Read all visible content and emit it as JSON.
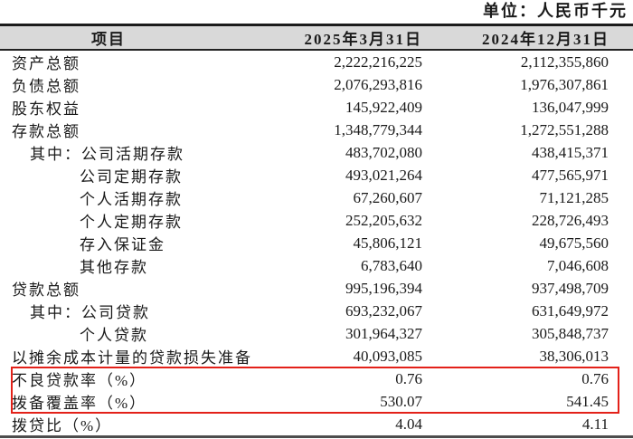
{
  "unit_label": "单位：人民币千元",
  "table": {
    "columns": [
      "项目",
      "2025年3月31日",
      "2024年12月31日"
    ],
    "rows": [
      {
        "label": "资产总额",
        "indent": 0,
        "values": [
          "2,222,216,225",
          "2,112,355,860"
        ],
        "highlight": false
      },
      {
        "label": "负债总额",
        "indent": 0,
        "values": [
          "2,076,293,816",
          "1,976,307,861"
        ],
        "highlight": false
      },
      {
        "label": "股东权益",
        "indent": 0,
        "values": [
          "145,922,409",
          "136,047,999"
        ],
        "highlight": false
      },
      {
        "label": "存款总额",
        "indent": 0,
        "values": [
          "1,348,779,344",
          "1,272,551,288"
        ],
        "highlight": false
      },
      {
        "label": "其中：公司活期存款",
        "indent": 1,
        "values": [
          "483,702,080",
          "438,415,371"
        ],
        "highlight": false
      },
      {
        "label": "公司定期存款",
        "indent": 2,
        "values": [
          "493,021,264",
          "477,565,971"
        ],
        "highlight": false
      },
      {
        "label": "个人活期存款",
        "indent": 2,
        "values": [
          "67,260,607",
          "71,121,285"
        ],
        "highlight": false
      },
      {
        "label": "个人定期存款",
        "indent": 2,
        "values": [
          "252,205,632",
          "228,726,493"
        ],
        "highlight": false
      },
      {
        "label": "存入保证金",
        "indent": 2,
        "values": [
          "45,806,121",
          "49,675,560"
        ],
        "highlight": false
      },
      {
        "label": "其他存款",
        "indent": 2,
        "values": [
          "6,783,640",
          "7,046,608"
        ],
        "highlight": false
      },
      {
        "label": "贷款总额",
        "indent": 0,
        "values": [
          "995,196,394",
          "937,498,709"
        ],
        "highlight": false
      },
      {
        "label": "其中：公司贷款",
        "indent": 1,
        "values": [
          "693,232,067",
          "631,649,972"
        ],
        "highlight": false
      },
      {
        "label": "个人贷款",
        "indent": 2,
        "values": [
          "301,964,327",
          "305,848,737"
        ],
        "highlight": false
      },
      {
        "label": "以摊余成本计量的贷款损失准备",
        "indent": 0,
        "values": [
          "40,093,085",
          "38,306,013"
        ],
        "highlight": false
      },
      {
        "label": "不良贷款率（%）",
        "indent": 0,
        "values": [
          "0.76",
          "0.76"
        ],
        "highlight": true
      },
      {
        "label": "拨备覆盖率（%）",
        "indent": 0,
        "values": [
          "530.07",
          "541.45"
        ],
        "highlight": true
      },
      {
        "label": "拨贷比（%）",
        "indent": 0,
        "values": [
          "4.04",
          "4.11"
        ],
        "highlight": false
      }
    ]
  },
  "colors": {
    "header_background": "#d9d9d9",
    "top_border": "#1c1c1c",
    "bottom_border": "#4d4d4d",
    "highlight_border": "#e32119",
    "text": "#1a1a1a"
  }
}
